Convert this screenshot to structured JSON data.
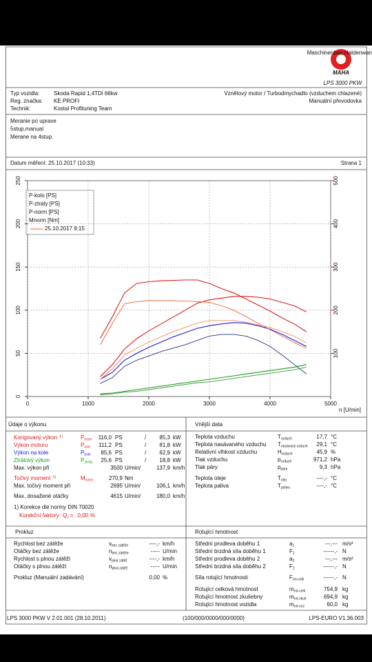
{
  "header": {
    "logo_text": "MAHA",
    "logo_ring": "Maschinenbau Haldenwang",
    "product": "LPS 3000 PKW"
  },
  "vehicle": {
    "rows": [
      {
        "label": "Typ vozidla:",
        "value": "Skoda Rapid 1,4TDi 66kw"
      },
      {
        "label": "Reg. značka:",
        "value": "KE PROFI"
      },
      {
        "label": "Technik:",
        "value": "Kostal Profituning Team"
      }
    ],
    "engine": "Vznětový motor / Turbodmychadlo (vzduchem chlazené)",
    "gearbox": "Manuální převodovka"
  },
  "notes": [
    "Meranie po uprave",
    "5stup.manual",
    "Merane na 4stup."
  ],
  "measurement": {
    "date": "Datum měření: 25.10.2017 (10:33)",
    "page": "Strana 1"
  },
  "chart_data": {
    "type": "line",
    "x_label": "n [U/min]",
    "x": [
      1200,
      1400,
      1600,
      1800,
      2000,
      2200,
      2400,
      2600,
      2800,
      3000,
      3200,
      3400,
      3600,
      3800,
      4000,
      4200,
      4400,
      4600
    ],
    "series": [
      {
        "name": "P-kolo [PS]",
        "color": "#1a1adc",
        "values": [
          20,
          28,
          42,
          50,
          57,
          63,
          69,
          74,
          79,
          82,
          84,
          85.6,
          85,
          82,
          78,
          72,
          65,
          58
        ]
      },
      {
        "name": "P-ztráty [PS]",
        "color": "#1a9a1a",
        "values": [
          3,
          4,
          6,
          8,
          10,
          12,
          14,
          16,
          18,
          20,
          22,
          24,
          26,
          28,
          30,
          32,
          34,
          37
        ]
      },
      {
        "name": "P-norm [PS]",
        "color": "#e01818",
        "values": [
          23,
          37,
          55,
          67,
          76,
          84,
          92,
          100,
          108,
          112,
          114,
          116,
          116,
          115,
          113,
          109,
          105,
          98
        ]
      },
      {
        "name": "Mnorm [Nm]",
        "color": "#e01818",
        "axis": "y2",
        "values": [
          135,
          185,
          240,
          262,
          266,
          268,
          269,
          270,
          270,
          262,
          250,
          240,
          226,
          212,
          198,
          182,
          168,
          150
        ]
      },
      {
        "name": "25.10.2017 9:15",
        "color": "#f06030",
        "axis": "y2",
        "comparison": true,
        "values": [
          120,
          170,
          215,
          220,
          222,
          222,
          222,
          221,
          220,
          218,
          210,
          200,
          185,
          170,
          155,
          140,
          125,
          112
        ]
      },
      {
        "color": "#f08a60",
        "comparison": true,
        "values": [
          20,
          32,
          48,
          56,
          63,
          69,
          75,
          80,
          85,
          88,
          88,
          88,
          86,
          83,
          80,
          75,
          70,
          62
        ]
      },
      {
        "color": "#28308c",
        "comparison": true,
        "values": [
          15,
          22,
          35,
          42,
          47,
          52,
          56,
          60,
          65,
          70,
          72,
          72,
          70,
          65,
          58,
          48,
          37,
          26
        ]
      },
      {
        "color": "#3a9a3a",
        "comparison": true,
        "values": [
          2,
          3,
          5,
          6,
          8,
          10,
          12,
          14,
          16,
          17,
          19,
          21,
          23,
          25,
          27,
          29,
          31,
          34
        ]
      }
    ],
    "xlim": [
      0,
      5000
    ],
    "xticks": [
      0,
      1000,
      2000,
      3000,
      4000,
      5000
    ],
    "ylim": [
      0,
      250
    ],
    "yticks": [
      0,
      50,
      100,
      150,
      200,
      250
    ],
    "y2lim": [
      0,
      500
    ],
    "y2ticks": [
      100,
      200,
      300,
      400,
      500
    ],
    "y2color": "#e01818",
    "grid": true,
    "legend": "upper left"
  },
  "performance": {
    "title": "Údaje o výkonu",
    "rows": [
      {
        "label": "Korigovaný výkon",
        "note": "1)",
        "symbol": "P",
        "sub": "norm",
        "value": "116,0",
        "unit": "PS",
        "sep": "/",
        "value2": "85,3",
        "unit2": "kW",
        "color": "#e01818"
      },
      {
        "label": "Výkon motoru",
        "symbol": "P",
        "sub": "mot",
        "value": "111,2",
        "unit": "PS",
        "sep": "/",
        "value2": "81,8",
        "unit2": "kW",
        "color": "#e01818"
      },
      {
        "label": "Výkon na kole",
        "symbol": "P",
        "sub": "kolo",
        "value": "85,6",
        "unit": "PS",
        "sep": "/",
        "value2": "62,9",
        "unit2": "kW",
        "color": "#1a1adc"
      },
      {
        "label": "Ztrátový výkon",
        "symbol": "P",
        "sub": "ztráty",
        "value": "25,6",
        "unit": "PS",
        "sep": "/",
        "value2": "18,8",
        "unit2": "kW",
        "color": "#1a9a1a"
      },
      {
        "label": "Max. výkon při",
        "value": "3500",
        "unit": "U/min/",
        "value2": "137,9",
        "unit2": "km/h",
        "value_color": "#888888"
      },
      {
        "label": "Točivý moment",
        "note": "1)",
        "symbol": "M",
        "sub": "norm",
        "value": "270,9",
        "unit": "Nm",
        "color": "#e01818"
      },
      {
        "label": "Max. točivý moment při",
        "value": "2695",
        "unit": "U/min/",
        "value2": "106,1",
        "unit2": "km/h",
        "value_color": "#888888"
      },
      {
        "label": "Max. dosažené otáčky",
        "value": "4615",
        "unit": "U/min/",
        "value2": "180,0",
        "unit2": "km/h",
        "value_color": "#888888"
      }
    ],
    "footnote": "1) Korekce dle normy DIN 70020",
    "factors": {
      "label": "Korekční faktory:",
      "symbol": "Q",
      "sub": "v",
      "eq": "=",
      "value": "0,00",
      "unit": "%"
    }
  },
  "external": {
    "title": "Vnější data",
    "rows": [
      {
        "label": "Teplota vzduchu",
        "symbol": "T",
        "sub": "vzduch",
        "value": "17,7",
        "unit": "°C"
      },
      {
        "label": "Teplota nasávaného vzduchu",
        "symbol": "T",
        "sub": "nasávaný vzduch",
        "value": "29,1",
        "unit": "°C"
      },
      {
        "label": "Relativní vlhkost vzduchu",
        "symbol": "H",
        "sub": "vzduch",
        "value": "45,9",
        "unit": "%"
      },
      {
        "label": "Tlak vzduchu",
        "symbol": "p",
        "sub": "vzduch",
        "value": "971,2",
        "unit": "hPa"
      },
      {
        "label": "Tlak páry",
        "symbol": "p",
        "sub": "pára",
        "value": "9,3",
        "unit": "hPa"
      },
      {
        "label": "Teplota oleje",
        "symbol": "T",
        "sub": "olej",
        "value": "----,-",
        "unit": "°C"
      },
      {
        "label": "Teplota paliva",
        "symbol": "T",
        "sub": "palivo",
        "value": "----,-",
        "unit": "°C"
      }
    ]
  },
  "slip": {
    "title": "Prokluz",
    "rows": [
      {
        "label": "Rychlost bez zátěže",
        "symbol": "v",
        "sub": "bez zátěže",
        "value": "----,-",
        "unit": "km/h"
      },
      {
        "label": "Otáčky bez zátěže",
        "symbol": "n",
        "sub": "bez zátěže",
        "value": "-----",
        "unit": "U/min"
      },
      {
        "label": "Rychlost s plnou zátěží",
        "symbol": "v",
        "sub": "plná zátěž",
        "value": "----,-",
        "unit": "km/h"
      },
      {
        "label": "Otáčky s plnou zátěží",
        "symbol": "n",
        "sub": "plná zátěž",
        "value": "-----",
        "unit": "U/min"
      },
      {
        "label": "Prokluz (Manuální zadávání)",
        "value": "0,00",
        "unit": "%"
      }
    ]
  },
  "rotating": {
    "title": "Rotující hmotnost",
    "rows": [
      {
        "label": "Střední prodleva doběhu 1",
        "symbol": "a",
        "sub": "1",
        "value": "---,---",
        "unit": "m/s²"
      },
      {
        "label": "Střední brzdná síla doběhu 1",
        "symbol": "F",
        "sub": "1",
        "value": "------,-",
        "unit": "N"
      },
      {
        "label": "Střední prodleva doběhu 2",
        "symbol": "a",
        "sub": "2",
        "value": "---,---",
        "unit": "m/s²"
      },
      {
        "label": "Střední brzdná síla doběhu 2",
        "symbol": "F",
        "sub": "2",
        "value": "------,-",
        "unit": "N"
      },
      {
        "label": "Síla rotující hmotnosti",
        "symbol": "F",
        "sub": "rot-celk",
        "value": "------,-",
        "unit": "N"
      },
      {
        "label": "Rotující celková hmotnost",
        "symbol": "m",
        "sub": "rot-celk",
        "value": "754,9",
        "unit": "kg"
      },
      {
        "label": "Rotující hmotnost zkušebny",
        "symbol": "m",
        "sub": "rot-zkuš",
        "value": "694,9",
        "unit": "kg"
      },
      {
        "label": "Rotující hmotnost vozidla",
        "symbol": "m",
        "sub": "rot-voz",
        "value": "60,0",
        "unit": "kg"
      }
    ]
  },
  "footer": {
    "left": "LPS 3000 PKW V 2.01.001 (28.10.2011)",
    "center": "(100/000/0000/000/0000)",
    "right": "LPS-EURO V1.36.003"
  }
}
